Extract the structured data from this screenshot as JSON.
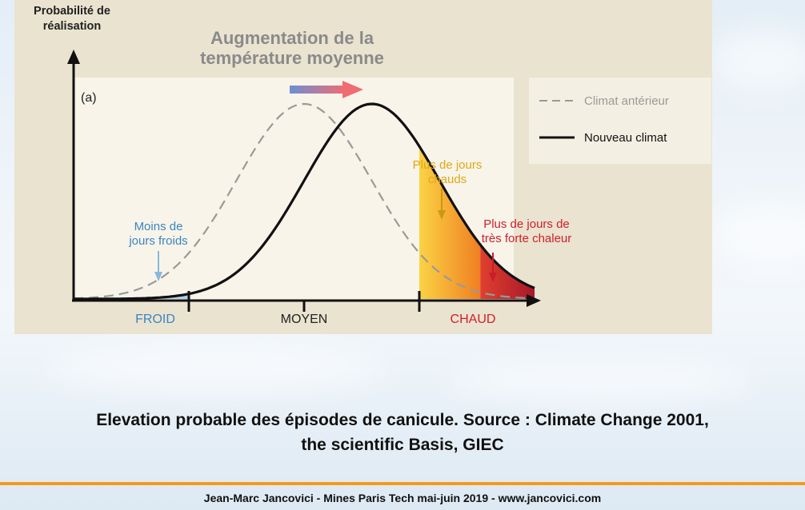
{
  "chart_data": {
    "type": "line",
    "panel_label": "(a)",
    "title_line1": "Augmentation de la",
    "title_line2": "température moyenne",
    "ylabel_line1": "Probabilité de",
    "ylabel_line2": "réalisation",
    "x_zones": [
      {
        "name": "FROID",
        "color": "#3a86c0"
      },
      {
        "name": "MOYEN",
        "color": "#222222"
      },
      {
        "name": "CHAUD",
        "color": "#d0202a"
      }
    ],
    "series": [
      {
        "name": "Climat antérieur",
        "style": "dashed",
        "color": "#9a9a96",
        "mean": 0.0,
        "sd": 1.0
      },
      {
        "name": "Nouveau climat",
        "style": "solid",
        "color": "#111111",
        "mean": 1.0,
        "sd": 1.0
      }
    ],
    "x_range": [
      -3.4,
      3.4
    ],
    "zone_bounds": [
      -1.7,
      1.7
    ],
    "extreme_bound": 2.6,
    "annotations": [
      {
        "lines": [
          "Moins de",
          "jours froids"
        ],
        "color": "#3a86c0"
      },
      {
        "lines": [
          "Plus de jours",
          "chauds"
        ],
        "color": "#e0a814"
      },
      {
        "lines": [
          "Plus de jours de",
          "très forte chaleur"
        ],
        "color": "#d0202a"
      }
    ]
  },
  "caption": {
    "line1": "Elevation probable des épisodes de canicule. Source : Climate Change 2001,",
    "line2": "the scientific Basis, GIEC"
  },
  "footer": "Jean-Marc Jancovici - Mines Paris Tech mai-juin 2019 - www.jancovici.com"
}
